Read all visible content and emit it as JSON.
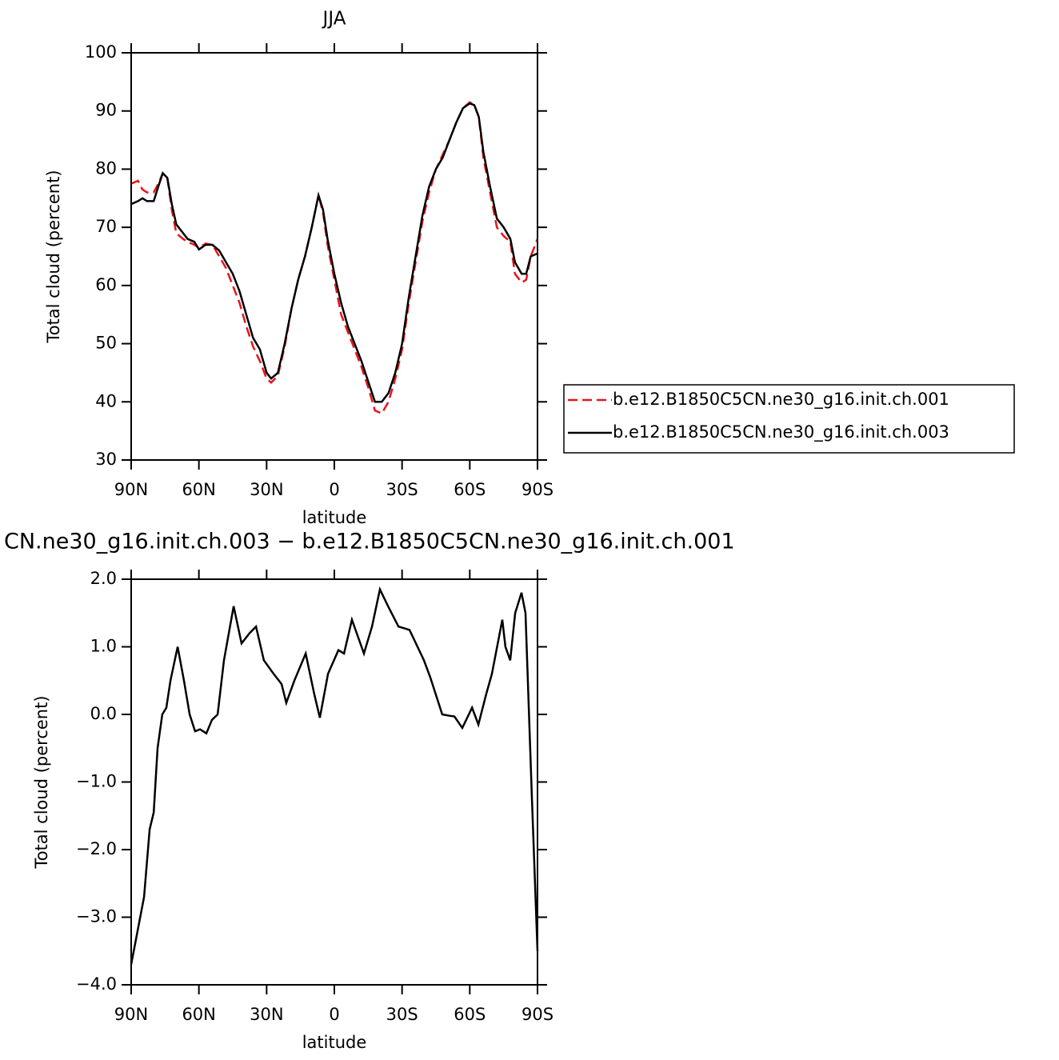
{
  "chart_data": [
    {
      "type": "line",
      "title": "JJA",
      "xlabel": "latitude",
      "ylabel": "Total cloud (percent)",
      "xlim": [
        90,
        -90
      ],
      "xticks": [
        {
          "value": 90,
          "label": "90N"
        },
        {
          "value": 60,
          "label": "60N"
        },
        {
          "value": 30,
          "label": "30N"
        },
        0,
        {
          "value": -30,
          "label": "30S"
        },
        {
          "value": -60,
          "label": "60S"
        },
        {
          "value": -90,
          "label": "90S"
        }
      ],
      "ylim": [
        30,
        100
      ],
      "yticks": [
        30,
        40,
        50,
        60,
        70,
        80,
        90,
        100
      ],
      "legend": "right",
      "x": [
        90,
        87,
        85,
        83,
        80,
        78,
        76,
        74,
        72,
        70,
        67,
        65,
        62,
        60,
        57,
        54,
        51,
        48,
        45,
        42,
        39,
        36,
        33,
        30,
        28,
        25,
        22,
        19,
        16,
        13,
        10,
        7,
        5,
        3,
        0,
        -3,
        -6,
        -9,
        -12,
        -15,
        -18,
        -21,
        -24,
        -27,
        -30,
        -33,
        -36,
        -39,
        -42,
        -45,
        -48,
        -51,
        -54,
        -57,
        -60,
        -62,
        -64,
        -66,
        -69,
        -72,
        -75,
        -78,
        -80,
        -83,
        -85,
        -87,
        -90
      ],
      "series": [
        {
          "name": "b.e12.B1850C5CN.ne30_g16.init.ch.001",
          "color": "#e8141c",
          "dash": true,
          "values": [
            77.5,
            78,
            76.5,
            76,
            76,
            77.5,
            79.3,
            78.5,
            73,
            69,
            68,
            67.5,
            67,
            66.5,
            67.2,
            67,
            65,
            63,
            60,
            57,
            53,
            49.5,
            47,
            44,
            43.3,
            44.5,
            49.5,
            56,
            61,
            65,
            70,
            75.5,
            72.5,
            67,
            61,
            55,
            52,
            49,
            46,
            42.5,
            38.5,
            38,
            40,
            44,
            49,
            57,
            64,
            71,
            76,
            80,
            82.5,
            85,
            88,
            90.5,
            91.5,
            91,
            89,
            82,
            76,
            70,
            68.5,
            67.5,
            62,
            60.5,
            61,
            65,
            68
          ]
        },
        {
          "name": "b.e12.B1850C5CN.ne30_g16.init.ch.003",
          "color": "#000000",
          "dash": false,
          "values": [
            74,
            74.5,
            75,
            74.5,
            74.5,
            77,
            79.3,
            78.5,
            74,
            70.5,
            69,
            68,
            67.5,
            66.2,
            67,
            67,
            66,
            64,
            62,
            59,
            55,
            51,
            49,
            45,
            44,
            45,
            50,
            56,
            61,
            65,
            70,
            75.5,
            73,
            68,
            62,
            57,
            53,
            50,
            47,
            43.5,
            40,
            40,
            41.5,
            45,
            50,
            58,
            65,
            72,
            77,
            80,
            82,
            85,
            88,
            90.5,
            91.3,
            91,
            89,
            83,
            77,
            71.5,
            70,
            68,
            64,
            62,
            62,
            65,
            65.5
          ]
        }
      ]
    },
    {
      "type": "line",
      "title": "CN.ne30_g16.init.ch.003 − b.e12.B1850C5CN.ne30_g16.init.ch.001",
      "xlabel": "latitude",
      "ylabel": "Total cloud (percent)",
      "xlim": [
        90,
        -90
      ],
      "xticks": [
        {
          "value": 90,
          "label": "90N"
        },
        {
          "value": 60,
          "label": "60N"
        },
        {
          "value": 30,
          "label": "30N"
        },
        0,
        {
          "value": -30,
          "label": "30S"
        },
        {
          "value": -60,
          "label": "60S"
        },
        {
          "value": -90,
          "label": "90S"
        }
      ],
      "ylim": [
        -4,
        2
      ],
      "yticks": [
        {
          "value": -4,
          "label": "−4.0"
        },
        {
          "value": -3,
          "label": "−3.0"
        },
        {
          "value": -2,
          "label": "−2.0"
        },
        {
          "value": -1,
          "label": "−1.0"
        },
        {
          "value": 0,
          "label": "0.0"
        },
        {
          "value": 1,
          "label": "1.0"
        },
        {
          "value": 2,
          "label": "2.0"
        }
      ],
      "x": [
        90,
        84.3,
        81.8,
        80,
        78.3,
        76.2,
        74.4,
        72.6,
        69.4,
        66.6,
        64.1,
        61.7,
        59.5,
        56.7,
        54.2,
        51.7,
        48.9,
        44.6,
        41.1,
        37.6,
        34.7,
        31.2,
        26.9,
        23.4,
        21.3,
        17.7,
        12.7,
        8.9,
        6.4,
        2.8,
        -1.8,
        -4.3,
        -7.8,
        -13.1,
        -16.7,
        -20.2,
        -23.8,
        -28.4,
        -33.3,
        -39.7,
        -42.5,
        -47.8,
        -51,
        -53.2,
        -56.7,
        -61,
        -63.8,
        -67.3,
        -69.8,
        -74.4,
        -75.8,
        -77.9,
        -80.1,
        -82.9,
        -84.7,
        -87.5,
        -90
      ],
      "series": [
        {
          "color": "#000000",
          "dash": false,
          "values": [
            -3.7,
            -2.7,
            -1.7,
            -1.45,
            -0.5,
            0,
            0.1,
            0.5,
            1,
            0.5,
            0,
            -0.25,
            -0.22,
            -0.28,
            -0.08,
            0,
            0.8,
            1.6,
            1.05,
            1.2,
            1.3,
            0.8,
            0.6,
            0.45,
            0.17,
            0.5,
            0.9,
            0.3,
            -0.05,
            0.6,
            0.95,
            0.9,
            1.4,
            0.9,
            1.3,
            1.85,
            1.6,
            1.3,
            1.25,
            0.8,
            0.55,
            0,
            -0.02,
            -0.03,
            -0.2,
            0.1,
            -0.15,
            0.3,
            0.6,
            1.4,
            1,
            0.8,
            1.5,
            1.8,
            1.5,
            -1.2,
            -3.5
          ]
        }
      ]
    }
  ]
}
